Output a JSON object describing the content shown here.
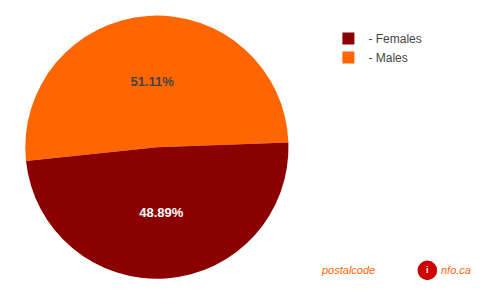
{
  "chart_data": {
    "type": "pie",
    "categories": [
      "- Males",
      "- Females"
    ],
    "values": [
      51.11,
      48.89
    ],
    "value_labels": [
      "51.11%",
      "48.89%"
    ],
    "colors": [
      "#FF6600",
      "#8B0000"
    ],
    "legend": "upper right",
    "data_labels": true,
    "annotations": [
      {
        "text": "postalcode",
        "color": "#FF6600"
      },
      {
        "text": "i",
        "color": "#FFFFFF",
        "background": "#CC0000"
      },
      {
        "text": "nfo.ca",
        "color": "#FF6600"
      }
    ]
  }
}
